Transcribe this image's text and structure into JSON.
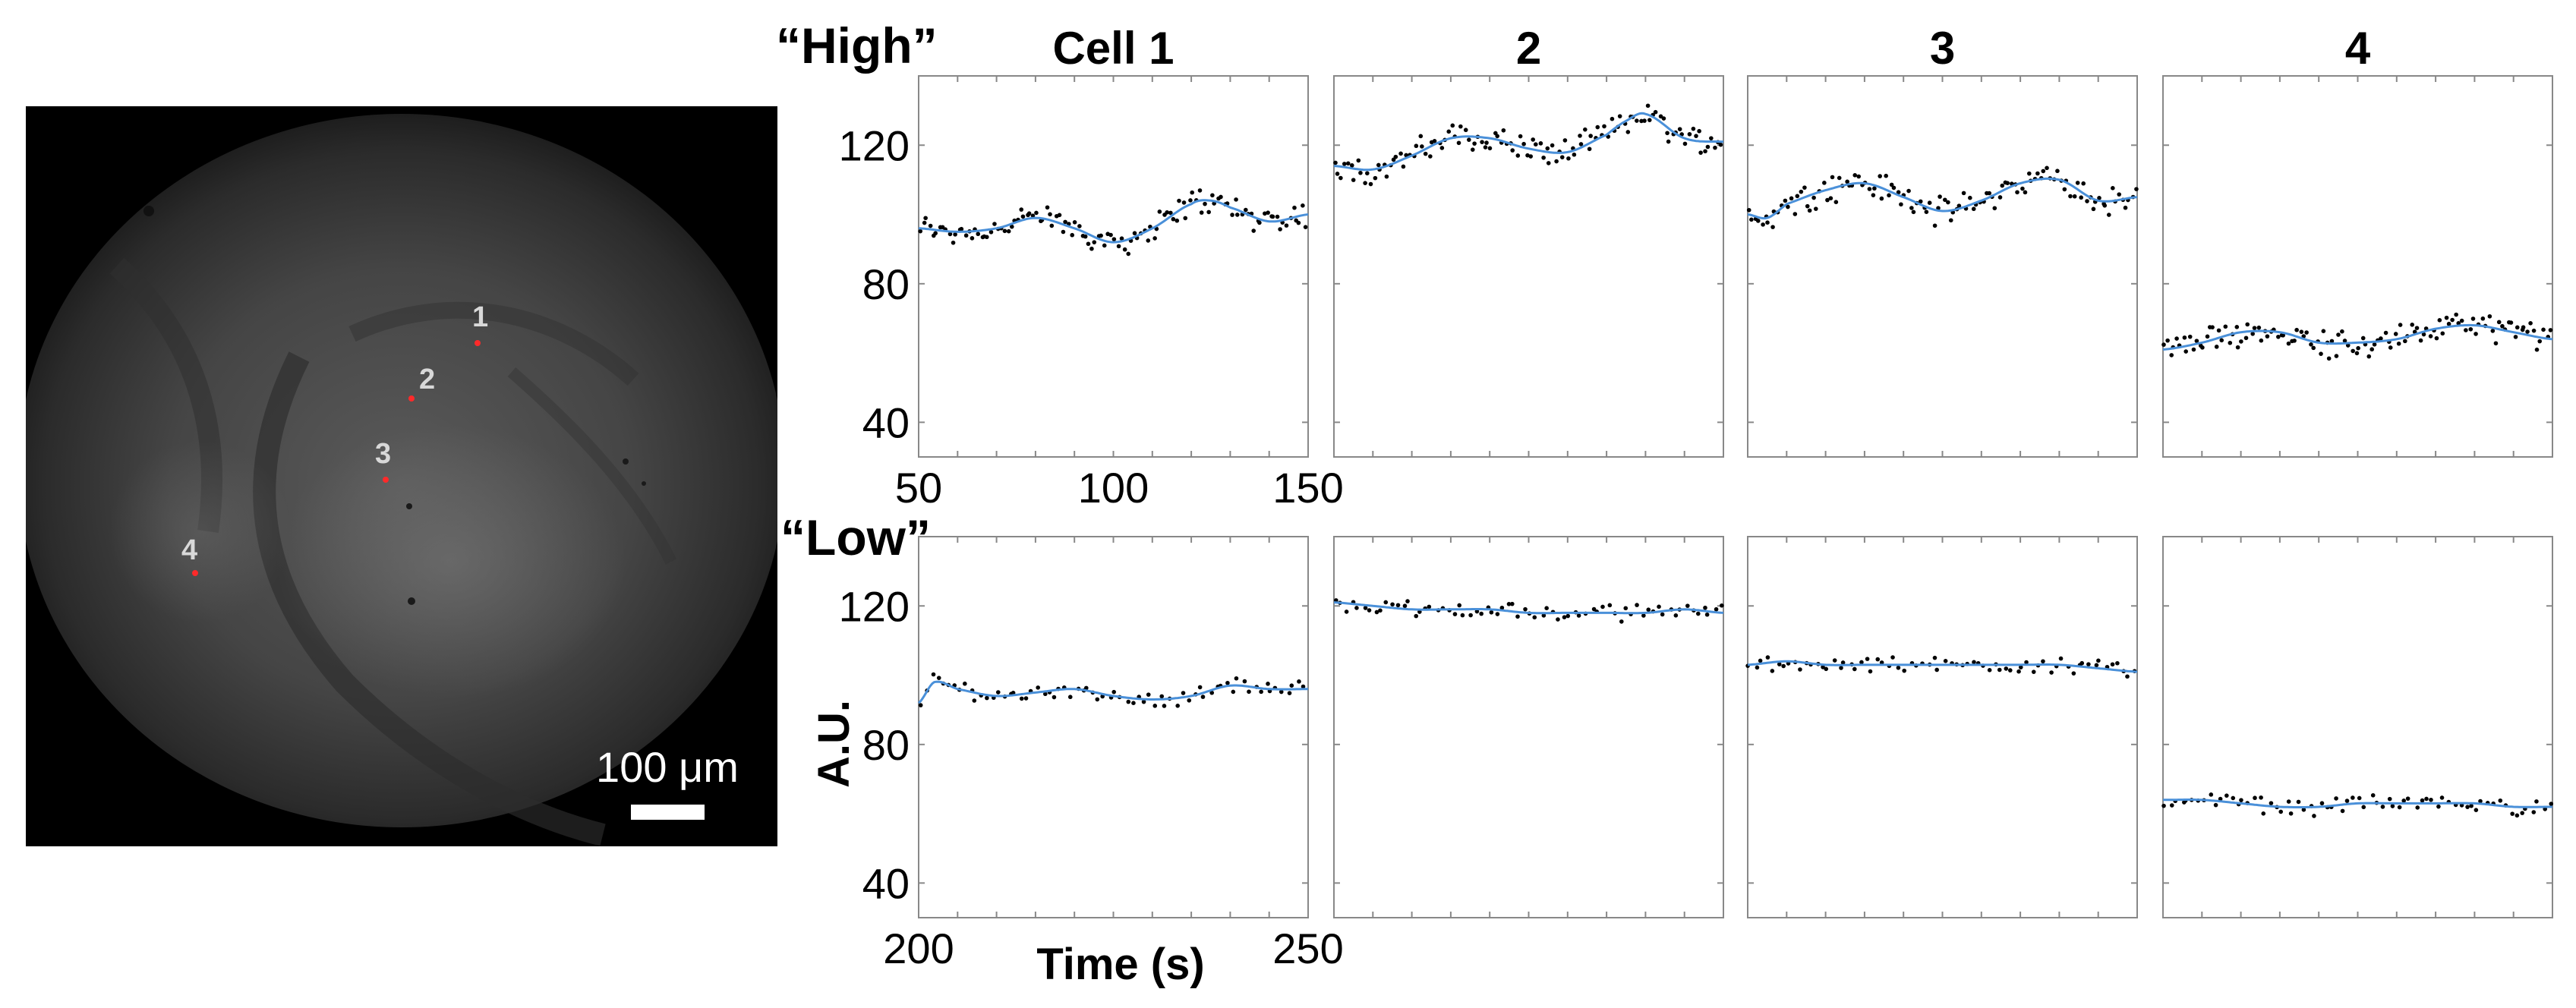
{
  "figure": {
    "scale_bar_label": "100 μm",
    "row_labels": [
      "“High”",
      "“Low”"
    ],
    "column_titles": [
      "Cell 1",
      "2",
      "3",
      "4"
    ],
    "y_axis_label": "A.U.",
    "x_axis_label": "Time (s)",
    "cell_markers": [
      "1",
      "2",
      "3",
      "4"
    ],
    "colors": {
      "fit_line": "#4a90d9",
      "data_points": "#000000",
      "cell_marker": "#ff2a2a",
      "image_background": "#000000"
    }
  },
  "chart_data": [
    {
      "type": "scatter",
      "row": "“High”",
      "title": "Cell 1",
      "xlim": [
        50,
        150
      ],
      "ylim": [
        30,
        140
      ],
      "xticks": [
        50,
        100,
        150
      ],
      "yticks": [
        40,
        80,
        120
      ],
      "series": [
        {
          "x": [
            50,
            60,
            70,
            80,
            90,
            100,
            110,
            120,
            125,
            130,
            140,
            150
          ],
          "values": [
            96,
            95,
            96,
            99,
            96,
            92,
            96,
            103,
            104,
            102,
            98,
            100
          ]
        }
      ]
    },
    {
      "type": "scatter",
      "row": "“High”",
      "title": "2",
      "xlim": [
        50,
        150
      ],
      "ylim": [
        30,
        140
      ],
      "xticks": [],
      "yticks": [
        40,
        80,
        120
      ],
      "series": [
        {
          "x": [
            50,
            60,
            70,
            80,
            90,
            100,
            110,
            120,
            125,
            130,
            140,
            150
          ],
          "values": [
            114,
            113,
            117,
            122,
            122,
            119,
            118,
            123,
            127,
            129,
            122,
            121
          ]
        }
      ]
    },
    {
      "type": "scatter",
      "row": "“High”",
      "title": "3",
      "xlim": [
        50,
        150
      ],
      "ylim": [
        30,
        140
      ],
      "xticks": [],
      "yticks": [
        40,
        80,
        120
      ],
      "series": [
        {
          "x": [
            50,
            55,
            60,
            70,
            80,
            90,
            100,
            110,
            120,
            130,
            140,
            150
          ],
          "values": [
            100,
            99,
            103,
            107,
            109,
            105,
            101,
            104,
            109,
            110,
            104,
            105
          ]
        }
      ]
    },
    {
      "type": "scatter",
      "row": "“High”",
      "title": "4",
      "xlim": [
        50,
        150
      ],
      "ylim": [
        30,
        140
      ],
      "xticks": [],
      "yticks": [
        40,
        80,
        120
      ],
      "series": [
        {
          "x": [
            50,
            60,
            70,
            80,
            90,
            100,
            110,
            120,
            130,
            140,
            150
          ],
          "values": [
            61,
            63,
            66,
            66,
            63,
            63,
            64,
            67,
            68,
            66,
            64
          ]
        }
      ]
    },
    {
      "type": "scatter",
      "row": "“Low”",
      "title": "",
      "xlim": [
        200,
        250
      ],
      "ylim": [
        30,
        140
      ],
      "xticks": [
        200,
        250
      ],
      "yticks": [
        40,
        80,
        120
      ],
      "series": [
        {
          "x": [
            200,
            202,
            205,
            210,
            215,
            220,
            225,
            230,
            235,
            240,
            245,
            250
          ],
          "values": [
            92,
            98,
            96,
            94,
            95,
            96,
            94,
            93,
            94,
            97,
            96,
            96
          ]
        }
      ]
    },
    {
      "type": "scatter",
      "row": "“Low”",
      "title": "",
      "xlim": [
        200,
        250
      ],
      "ylim": [
        30,
        140
      ],
      "xticks": [],
      "yticks": [
        40,
        80,
        120
      ],
      "series": [
        {
          "x": [
            200,
            205,
            210,
            215,
            220,
            225,
            230,
            235,
            240,
            245,
            250
          ],
          "values": [
            121,
            120,
            119,
            119,
            119,
            118,
            118,
            118,
            118,
            119,
            118
          ]
        }
      ]
    },
    {
      "type": "scatter",
      "row": "“Low”",
      "title": "",
      "xlim": [
        200,
        250
      ],
      "ylim": [
        30,
        140
      ],
      "xticks": [],
      "yticks": [
        40,
        80,
        120
      ],
      "series": [
        {
          "x": [
            200,
            205,
            210,
            215,
            220,
            225,
            230,
            235,
            240,
            245,
            250
          ],
          "values": [
            103,
            104,
            103,
            103,
            103,
            103,
            103,
            103,
            103,
            102,
            101
          ]
        }
      ]
    },
    {
      "type": "scatter",
      "row": "“Low”",
      "title": "",
      "xlim": [
        200,
        250
      ],
      "ylim": [
        30,
        140
      ],
      "xticks": [],
      "yticks": [
        40,
        80,
        120
      ],
      "series": [
        {
          "x": [
            200,
            205,
            210,
            215,
            220,
            225,
            230,
            235,
            240,
            245,
            250
          ],
          "values": [
            64,
            64,
            63,
            62,
            62,
            63,
            63,
            63,
            63,
            62,
            62
          ]
        }
      ]
    }
  ]
}
